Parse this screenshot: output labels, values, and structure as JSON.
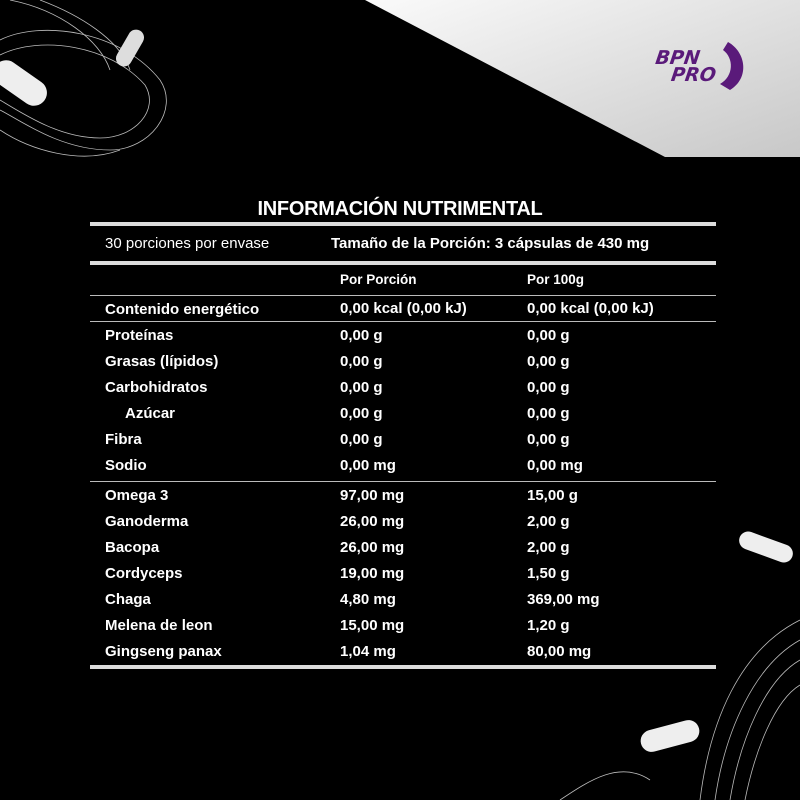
{
  "brand": {
    "logo_text": "BPN PRO",
    "logo_color": "#5a1a7a"
  },
  "title": "INFORMACIÓN NUTRIMENTAL",
  "servings_per_container": "30 porciones por envase",
  "serving_size": "Tamaño de la Porción: 3 cápsulas de 430 mg",
  "columns": [
    "Por Porción",
    "Por 100g"
  ],
  "energy": {
    "label": "Contenido energético",
    "per_serving": "0,00 kcal (0,00 kJ)",
    "per_100g": "0,00 kcal (0,00 kJ)"
  },
  "nutrients": [
    {
      "label": "Proteínas",
      "per_serving": "0,00 g",
      "per_100g": "0,00 g"
    },
    {
      "label": "Grasas (lípidos)",
      "per_serving": "0,00 g",
      "per_100g": "0,00 g"
    },
    {
      "label": "Carbohidratos",
      "per_serving": "0,00 g",
      "per_100g": "0,00 g"
    },
    {
      "label": "Azúcar",
      "per_serving": "0,00 g",
      "per_100g": "0,00 g"
    },
    {
      "label": "Fibra",
      "per_serving": "0,00 g",
      "per_100g": "0,00 g"
    },
    {
      "label": "Sodio",
      "per_serving": "0,00 mg",
      "per_100g": "0,00 mg"
    }
  ],
  "ingredients": [
    {
      "label": "Omega 3",
      "per_serving": "97,00 mg",
      "per_100g": "15,00 g"
    },
    {
      "label": "Ganoderma",
      "per_serving": "26,00 mg",
      "per_100g": "2,00 g"
    },
    {
      "label": "Bacopa",
      "per_serving": "26,00 mg",
      "per_100g": "2,00 g"
    },
    {
      "label": "Cordyceps",
      "per_serving": "19,00 mg",
      "per_100g": "1,50 g"
    },
    {
      "label": "Chaga",
      "per_serving": "4,80 mg",
      "per_100g": "369,00 mg"
    },
    {
      "label": "Melena de leon",
      "per_serving": "15,00 mg",
      "per_100g": "1,20 g"
    },
    {
      "label": "Gingseng panax",
      "per_serving": "1,04 mg",
      "per_100g": "80,00 mg"
    }
  ]
}
